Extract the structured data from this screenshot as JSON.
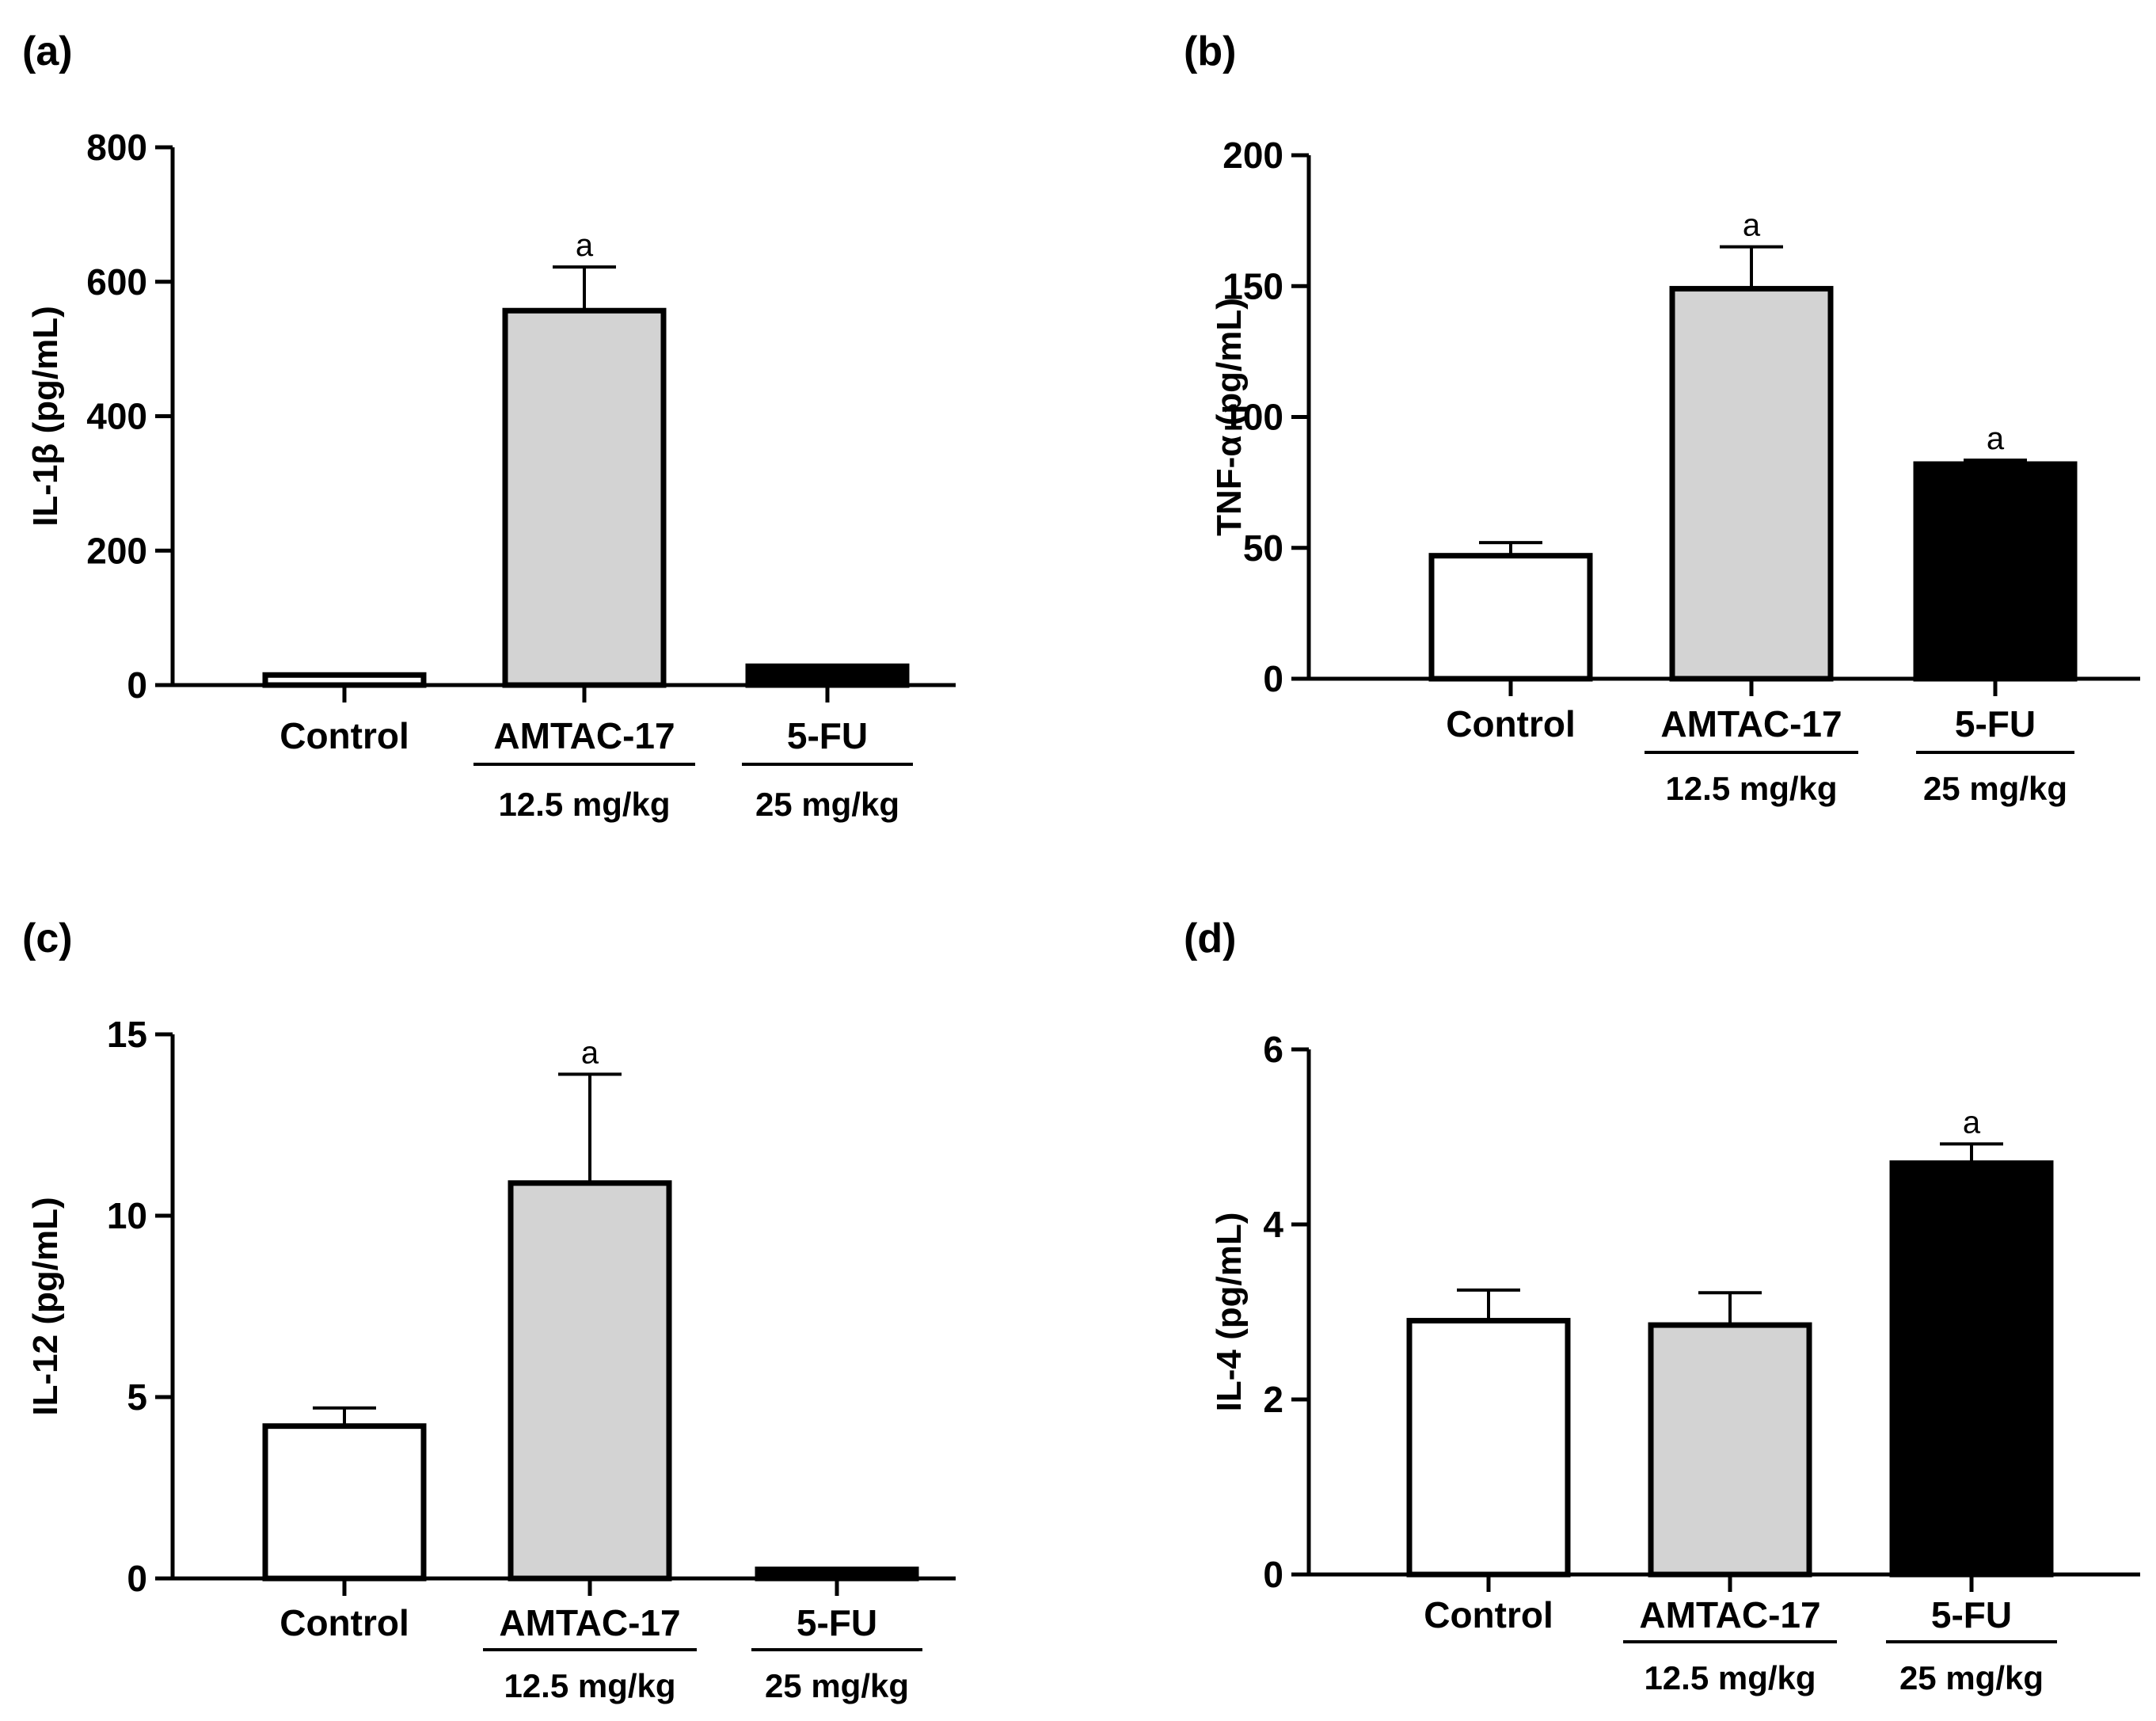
{
  "chart_data": [
    {
      "type": "bar",
      "panel_label": "(a)",
      "ylabel": "IL-1β (pg/mL)",
      "ylim": [
        0,
        800
      ],
      "yticks": [
        0,
        200,
        400,
        600,
        800
      ],
      "categories": [
        "Control",
        "AMTAC-17",
        "5-FU"
      ],
      "doses": [
        "",
        "12.5 mg/kg",
        "25 mg/kg"
      ],
      "values": [
        15,
        557,
        28
      ],
      "errors": [
        0,
        65,
        0
      ],
      "significance": [
        "",
        "a",
        ""
      ],
      "colors": [
        "#ffffff",
        "#d3d3d3",
        "#000000"
      ]
    },
    {
      "type": "bar",
      "panel_label": "(b)",
      "ylabel": "TNF-α (pg/mL)",
      "ylim": [
        0,
        200
      ],
      "yticks": [
        0,
        50,
        100,
        150,
        200
      ],
      "categories": [
        "Control",
        "AMTAC-17",
        "5-FU"
      ],
      "doses": [
        "",
        "12.5 mg/kg",
        "25 mg/kg"
      ],
      "values": [
        47,
        149,
        82
      ],
      "errors": [
        5,
        16,
        1.5
      ],
      "significance": [
        "",
        "a",
        "a"
      ],
      "colors": [
        "#ffffff",
        "#d3d3d3",
        "#000000"
      ]
    },
    {
      "type": "bar",
      "panel_label": "(c)",
      "ylabel": "IL-12 (pg/mL)",
      "ylim": [
        0,
        15
      ],
      "yticks": [
        0,
        5,
        10,
        15
      ],
      "categories": [
        "Control",
        "AMTAC-17",
        "5-FU"
      ],
      "doses": [
        "",
        "12.5 mg/kg",
        "25 mg/kg"
      ],
      "values": [
        4.2,
        10.9,
        0.25
      ],
      "errors": [
        0.5,
        3.0,
        0
      ],
      "significance": [
        "",
        "a",
        ""
      ],
      "colors": [
        "#ffffff",
        "#d3d3d3",
        "#000000"
      ]
    },
    {
      "type": "bar",
      "panel_label": "(d)",
      "ylabel": "IL-4 (pg/mL)",
      "ylim": [
        0,
        6
      ],
      "yticks": [
        0,
        2,
        4,
        6
      ],
      "categories": [
        "Control",
        "AMTAC-17",
        "5-FU"
      ],
      "doses": [
        "",
        "12.5 mg/kg",
        "25 mg/kg"
      ],
      "values": [
        2.9,
        2.85,
        4.7
      ],
      "errors": [
        0.35,
        0.37,
        0.22
      ],
      "significance": [
        "",
        "",
        "a"
      ],
      "colors": [
        "#ffffff",
        "#d3d3d3",
        "#000000"
      ]
    }
  ]
}
